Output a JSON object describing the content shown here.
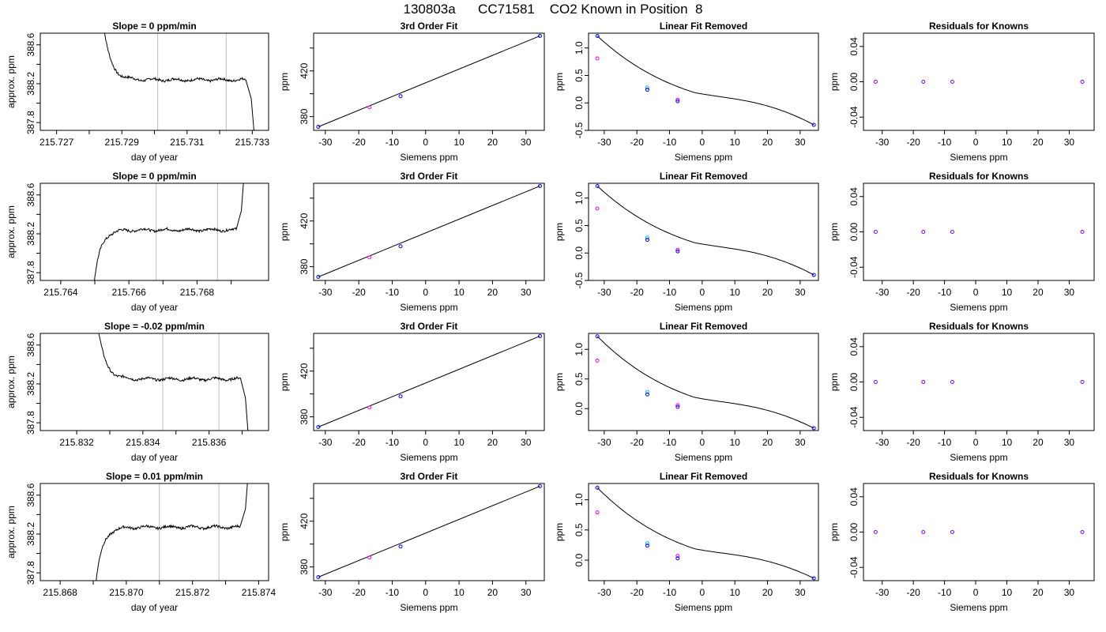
{
  "figure": {
    "title": "130803a      CC71581    CO2 Known in Position  8"
  },
  "colors": {
    "trace": "#000000",
    "window_line": "#bebebe",
    "point_blue": "#0000ff",
    "point_magenta": "#ff00ff",
    "point_cyan": "#00bfff",
    "point_purple": "#8000ff"
  },
  "chart_data": [
    {
      "type": "line",
      "row": 1,
      "col": 1,
      "title": "Slope =  0  ppm/min",
      "xlabel": "day of year",
      "ylabel": "approx. ppm",
      "xlim": [
        215.7265,
        215.7335
      ],
      "ylim": [
        387.72,
        388.72
      ],
      "xticks": [
        215.727,
        215.728,
        215.729,
        215.73,
        215.731,
        215.732,
        215.733
      ],
      "xtick_labels": [
        "215.727",
        "",
        "215.729",
        "",
        "215.731",
        "",
        "215.733"
      ],
      "yticks": [
        387.8,
        388.0,
        388.2,
        388.4,
        388.6
      ],
      "ytick_labels": [
        "387.8",
        "",
        "388.2",
        "",
        "388.6"
      ],
      "window": [
        215.7301,
        215.7322
      ],
      "trace": {
        "start": 215.7284,
        "mid_end": 215.73285,
        "flat_end": 215.7328,
        "end": 215.73308,
        "top_y": 388.9,
        "level": 388.24,
        "bottom_y": 387.6,
        "decay_start": 388.9,
        "rise": false
      }
    },
    {
      "type": "scatter",
      "row": 1,
      "col": 2,
      "title": "3rd Order Fit",
      "xlabel": "Siemens ppm",
      "ylabel": "ppm",
      "xlim": [
        -33.5,
        35.5
      ],
      "ylim": [
        368,
        453
      ],
      "xticks": [
        -30,
        -20,
        -10,
        0,
        10,
        20,
        30
      ],
      "xtick_labels": [
        "-30",
        "-20",
        "-10",
        "0",
        "10",
        "20",
        "30"
      ],
      "yticks": [
        380,
        400,
        420,
        440
      ],
      "ytick_labels": [
        "380",
        "",
        "420",
        ""
      ],
      "points": [
        {
          "x": -32.1,
          "y": 371.1
        },
        {
          "x": -16.8,
          "y": 388.2
        },
        {
          "x": -7.5,
          "y": 397.9
        },
        {
          "x": 34.2,
          "y": 450.6
        }
      ],
      "line": {
        "x0": -32.1,
        "y0": 371.1,
        "x1": 34.2,
        "y1": 450.6
      }
    },
    {
      "type": "scatter",
      "row": 1,
      "col": 3,
      "title": "Linear Fit Removed",
      "xlabel": "Siemens ppm",
      "ylabel": "ppm",
      "xlim": [
        -34.8,
        35.6
      ],
      "ylim": [
        -0.5,
        1.27
      ],
      "xticks": [
        -30,
        -20,
        -10,
        0,
        10,
        20,
        30
      ],
      "xtick_labels": [
        "-30",
        "-20",
        "-10",
        "0",
        "10",
        "20",
        "30"
      ],
      "yticks": [
        -0.5,
        0.0,
        0.5,
        1.0
      ],
      "ytick_labels": [
        "-0.5",
        "0.0",
        "0.5",
        "1.0"
      ],
      "points": [
        {
          "x": -32.1,
          "y": 1.22
        },
        {
          "x": -32.1,
          "y": 0.81
        },
        {
          "x": -16.8,
          "y": 0.28
        },
        {
          "x": -16.8,
          "y": 0.24
        },
        {
          "x": -7.5,
          "y": 0.06
        },
        {
          "x": -7.5,
          "y": 0.03
        },
        {
          "x": 34.2,
          "y": -0.4
        }
      ],
      "curve": [
        1.22,
        0.0,
        -0.4
      ]
    },
    {
      "type": "scatter",
      "row": 1,
      "col": 4,
      "title": "Residuals for Knowns",
      "xlabel": "Siemens ppm",
      "ylabel": "ppm",
      "xlim": [
        -36,
        38
      ],
      "ylim": [
        -0.055,
        0.055
      ],
      "xticks": [
        -30,
        -20,
        -10,
        0,
        10,
        20,
        30
      ],
      "xtick_labels": [
        "-30",
        "-20",
        "-10",
        "0",
        "10",
        "20",
        "30"
      ],
      "yticks": [
        -0.04,
        0.0,
        0.04
      ],
      "ytick_labels": [
        "-0.04",
        "0.00",
        "0.04"
      ],
      "points": [
        {
          "x": -32.1,
          "y": 0
        },
        {
          "x": -16.8,
          "y": 0
        },
        {
          "x": -7.5,
          "y": 0
        },
        {
          "x": 34.2,
          "y": 0
        }
      ]
    },
    {
      "type": "line",
      "row": 2,
      "col": 1,
      "title": "Slope =  0  ppm/min",
      "xlabel": "day of year",
      "ylabel": "approx. ppm",
      "xlim": [
        215.7634,
        215.7701
      ],
      "ylim": [
        387.72,
        388.72
      ],
      "xticks": [
        215.764,
        215.765,
        215.766,
        215.767,
        215.768,
        215.769
      ],
      "xtick_labels": [
        "215.764",
        "",
        "215.766",
        "",
        "215.768",
        ""
      ],
      "yticks": [
        387.8,
        388.0,
        388.2,
        388.4,
        388.6
      ],
      "ytick_labels": [
        "387.8",
        "",
        "388.2",
        "",
        "388.6"
      ],
      "window": [
        215.7668,
        215.7686
      ],
      "trace": {
        "start": 215.76495,
        "flat_end": 215.76915,
        "end": 215.7694,
        "top_y": 388.9,
        "level": 388.24,
        "bottom_y": 387.6,
        "rise": true
      }
    },
    {
      "type": "scatter",
      "row": 2,
      "col": 2,
      "title": "3rd Order Fit",
      "xlabel": "Siemens ppm",
      "ylabel": "ppm",
      "xlim": [
        -33.5,
        35.5
      ],
      "ylim": [
        368,
        453
      ],
      "xticks": [
        -30,
        -20,
        -10,
        0,
        10,
        20,
        30
      ],
      "xtick_labels": [
        "-30",
        "-20",
        "-10",
        "0",
        "10",
        "20",
        "30"
      ],
      "yticks": [
        380,
        400,
        420,
        440
      ],
      "ytick_labels": [
        "380",
        "",
        "420",
        ""
      ],
      "points": [
        {
          "x": -32.1,
          "y": 371.1
        },
        {
          "x": -16.8,
          "y": 388.2
        },
        {
          "x": -7.5,
          "y": 397.9
        },
        {
          "x": 34.2,
          "y": 450.6
        }
      ],
      "line": {
        "x0": -32.1,
        "y0": 371.1,
        "x1": 34.2,
        "y1": 450.6
      }
    },
    {
      "type": "scatter",
      "row": 2,
      "col": 3,
      "title": "Linear Fit Removed",
      "xlabel": "Siemens ppm",
      "ylabel": "ppm",
      "xlim": [
        -34.8,
        35.6
      ],
      "ylim": [
        -0.5,
        1.27
      ],
      "xticks": [
        -30,
        -20,
        -10,
        0,
        10,
        20,
        30
      ],
      "xtick_labels": [
        "-30",
        "-20",
        "-10",
        "0",
        "10",
        "20",
        "30"
      ],
      "yticks": [
        -0.5,
        0.0,
        0.5,
        1.0
      ],
      "ytick_labels": [
        "-0.5",
        "0.0",
        "0.5",
        "1.0"
      ],
      "points": [
        {
          "x": -32.1,
          "y": 1.22
        },
        {
          "x": -32.1,
          "y": 0.81
        },
        {
          "x": -16.8,
          "y": 0.28
        },
        {
          "x": -16.8,
          "y": 0.24
        },
        {
          "x": -7.5,
          "y": 0.06
        },
        {
          "x": -7.5,
          "y": 0.03
        },
        {
          "x": 34.2,
          "y": -0.4
        }
      ],
      "curve": [
        1.22,
        0.0,
        -0.4
      ]
    },
    {
      "type": "scatter",
      "row": 2,
      "col": 4,
      "title": "Residuals for Knowns",
      "xlabel": "Siemens ppm",
      "ylabel": "ppm",
      "xlim": [
        -36,
        38
      ],
      "ylim": [
        -0.055,
        0.055
      ],
      "xticks": [
        -30,
        -20,
        -10,
        0,
        10,
        20,
        30
      ],
      "xtick_labels": [
        "-30",
        "-20",
        "-10",
        "0",
        "10",
        "20",
        "30"
      ],
      "yticks": [
        -0.04,
        0.0,
        0.04
      ],
      "ytick_labels": [
        "-0.04",
        "0.00",
        "0.04"
      ],
      "points": [
        {
          "x": -32.1,
          "y": 0
        },
        {
          "x": -16.8,
          "y": 0
        },
        {
          "x": -7.5,
          "y": 0
        },
        {
          "x": 34.2,
          "y": 0
        }
      ]
    },
    {
      "type": "line",
      "row": 3,
      "col": 1,
      "title": "Slope =  -0.02  ppm/min",
      "xlabel": "day of year",
      "ylabel": "approx. ppm",
      "xlim": [
        215.8309,
        215.8378
      ],
      "ylim": [
        387.72,
        388.72
      ],
      "xticks": [
        215.832,
        215.833,
        215.834,
        215.835,
        215.836,
        215.837
      ],
      "xtick_labels": [
        "215.832",
        "",
        "215.834",
        "",
        "215.836",
        ""
      ],
      "yticks": [
        387.8,
        388.0,
        388.2,
        388.4,
        388.6
      ],
      "ytick_labels": [
        "387.8",
        "",
        "388.2",
        "",
        "388.6"
      ],
      "window": [
        215.8346,
        215.8363
      ],
      "trace": {
        "start": 215.8326,
        "flat_end": 215.83695,
        "end": 215.8372,
        "top_y": 388.9,
        "level": 388.25,
        "bottom_y": 387.6,
        "rise": false
      }
    },
    {
      "type": "scatter",
      "row": 3,
      "col": 2,
      "title": "3rd Order Fit",
      "xlabel": "Siemens ppm",
      "ylabel": "ppm",
      "xlim": [
        -33.5,
        35.5
      ],
      "ylim": [
        368,
        453
      ],
      "xticks": [
        -30,
        -20,
        -10,
        0,
        10,
        20,
        30
      ],
      "xtick_labels": [
        "-30",
        "-20",
        "-10",
        "0",
        "10",
        "20",
        "30"
      ],
      "yticks": [
        380,
        400,
        420,
        440
      ],
      "ytick_labels": [
        "380",
        "",
        "420",
        ""
      ],
      "points": [
        {
          "x": -32.1,
          "y": 371.1
        },
        {
          "x": -16.8,
          "y": 388.2
        },
        {
          "x": -7.5,
          "y": 397.9
        },
        {
          "x": 34.2,
          "y": 450.6
        }
      ],
      "line": {
        "x0": -32.1,
        "y0": 371.1,
        "x1": 34.2,
        "y1": 450.6
      }
    },
    {
      "type": "scatter",
      "row": 3,
      "col": 3,
      "title": "Linear Fit Removed",
      "xlabel": "Siemens ppm",
      "ylabel": "ppm",
      "xlim": [
        -34.8,
        35.6
      ],
      "ylim": [
        -0.37,
        1.27
      ],
      "xticks": [
        -30,
        -20,
        -10,
        0,
        10,
        20,
        30
      ],
      "xtick_labels": [
        "-30",
        "-20",
        "-10",
        "0",
        "10",
        "20",
        "30"
      ],
      "yticks": [
        0.0,
        0.5,
        1.0
      ],
      "ytick_labels": [
        "0.0",
        "0.5",
        "1.0"
      ],
      "points": [
        {
          "x": -32.1,
          "y": 1.22
        },
        {
          "x": -32.1,
          "y": 0.81
        },
        {
          "x": -16.8,
          "y": 0.28
        },
        {
          "x": -16.8,
          "y": 0.24
        },
        {
          "x": -7.5,
          "y": 0.06
        },
        {
          "x": -7.5,
          "y": 0.03
        },
        {
          "x": 34.2,
          "y": -0.33
        }
      ],
      "curve": [
        1.22,
        0.0,
        -0.33
      ]
    },
    {
      "type": "scatter",
      "row": 3,
      "col": 4,
      "title": "Residuals for Knowns",
      "xlabel": "Siemens ppm",
      "ylabel": "ppm",
      "xlim": [
        -36,
        38
      ],
      "ylim": [
        -0.055,
        0.055
      ],
      "xticks": [
        -30,
        -20,
        -10,
        0,
        10,
        20,
        30
      ],
      "xtick_labels": [
        "-30",
        "-20",
        "-10",
        "0",
        "10",
        "20",
        "30"
      ],
      "yticks": [
        -0.04,
        0.0,
        0.04
      ],
      "ytick_labels": [
        "-0.04",
        "0.00",
        "0.04"
      ],
      "points": [
        {
          "x": -32.1,
          "y": 0
        },
        {
          "x": -16.8,
          "y": 0
        },
        {
          "x": -7.5,
          "y": 0
        },
        {
          "x": 34.2,
          "y": 0
        }
      ]
    },
    {
      "type": "line",
      "row": 4,
      "col": 1,
      "title": "Slope =  0.01  ppm/min",
      "xlabel": "day of year",
      "ylabel": "approx. ppm",
      "xlim": [
        215.8674,
        215.8743
      ],
      "ylim": [
        387.72,
        388.72
      ],
      "xticks": [
        215.868,
        215.869,
        215.87,
        215.871,
        215.872,
        215.873,
        215.874
      ],
      "xtick_labels": [
        "215.868",
        "",
        "215.870",
        "",
        "215.872",
        "",
        "215.874"
      ],
      "yticks": [
        387.8,
        388.0,
        388.2,
        388.4,
        388.6
      ],
      "ytick_labels": [
        "387.8",
        "",
        "388.2",
        "",
        "388.6"
      ],
      "window": [
        215.871,
        215.8728
      ],
      "trace": {
        "start": 215.86905,
        "flat_end": 215.87345,
        "end": 215.8737,
        "top_y": 388.9,
        "level": 388.27,
        "bottom_y": 387.6,
        "rise": true
      }
    },
    {
      "type": "scatter",
      "row": 4,
      "col": 2,
      "title": "3rd Order Fit",
      "xlabel": "Siemens ppm",
      "ylabel": "ppm",
      "xlim": [
        -33.5,
        35.5
      ],
      "ylim": [
        368,
        453
      ],
      "xticks": [
        -30,
        -20,
        -10,
        0,
        10,
        20,
        30
      ],
      "xtick_labels": [
        "-30",
        "-20",
        "-10",
        "0",
        "10",
        "20",
        "30"
      ],
      "yticks": [
        380,
        400,
        420,
        440
      ],
      "ytick_labels": [
        "380",
        "",
        "420",
        ""
      ],
      "points": [
        {
          "x": -32.1,
          "y": 371.1
        },
        {
          "x": -16.8,
          "y": 388.2
        },
        {
          "x": -7.5,
          "y": 397.9
        },
        {
          "x": 34.2,
          "y": 450.6
        }
      ],
      "line": {
        "x0": -32.1,
        "y0": 371.1,
        "x1": 34.2,
        "y1": 450.6
      }
    },
    {
      "type": "scatter",
      "row": 4,
      "col": 3,
      "title": "Linear Fit Removed",
      "xlabel": "Siemens ppm",
      "ylabel": "ppm",
      "xlim": [
        -34.8,
        35.6
      ],
      "ylim": [
        -0.34,
        1.27
      ],
      "xticks": [
        -30,
        -20,
        -10,
        0,
        10,
        20,
        30
      ],
      "xtick_labels": [
        "-30",
        "-20",
        "-10",
        "0",
        "10",
        "20",
        "30"
      ],
      "yticks": [
        0.0,
        0.5,
        1.0
      ],
      "ytick_labels": [
        "0.0",
        "0.5",
        "1.0"
      ],
      "points": [
        {
          "x": -32.1,
          "y": 1.2
        },
        {
          "x": -32.1,
          "y": 0.79
        },
        {
          "x": -16.8,
          "y": 0.28
        },
        {
          "x": -16.8,
          "y": 0.24
        },
        {
          "x": -7.5,
          "y": 0.07
        },
        {
          "x": -7.5,
          "y": 0.03
        },
        {
          "x": 34.2,
          "y": -0.3
        }
      ],
      "curve": [
        1.2,
        0.0,
        -0.3
      ]
    },
    {
      "type": "scatter",
      "row": 4,
      "col": 4,
      "title": "Residuals for Knowns",
      "xlabel": "Siemens ppm",
      "ylabel": "ppm",
      "xlim": [
        -36,
        38
      ],
      "ylim": [
        -0.055,
        0.055
      ],
      "xticks": [
        -30,
        -20,
        -10,
        0,
        10,
        20,
        30
      ],
      "xtick_labels": [
        "-30",
        "-20",
        "-10",
        "0",
        "10",
        "20",
        "30"
      ],
      "yticks": [
        -0.04,
        0.0,
        0.04
      ],
      "ytick_labels": [
        "-0.04",
        "0.00",
        "0.04"
      ],
      "points": [
        {
          "x": -32.1,
          "y": 0
        },
        {
          "x": -16.8,
          "y": 0
        },
        {
          "x": -7.5,
          "y": 0
        },
        {
          "x": 34.2,
          "y": 0
        }
      ]
    }
  ]
}
